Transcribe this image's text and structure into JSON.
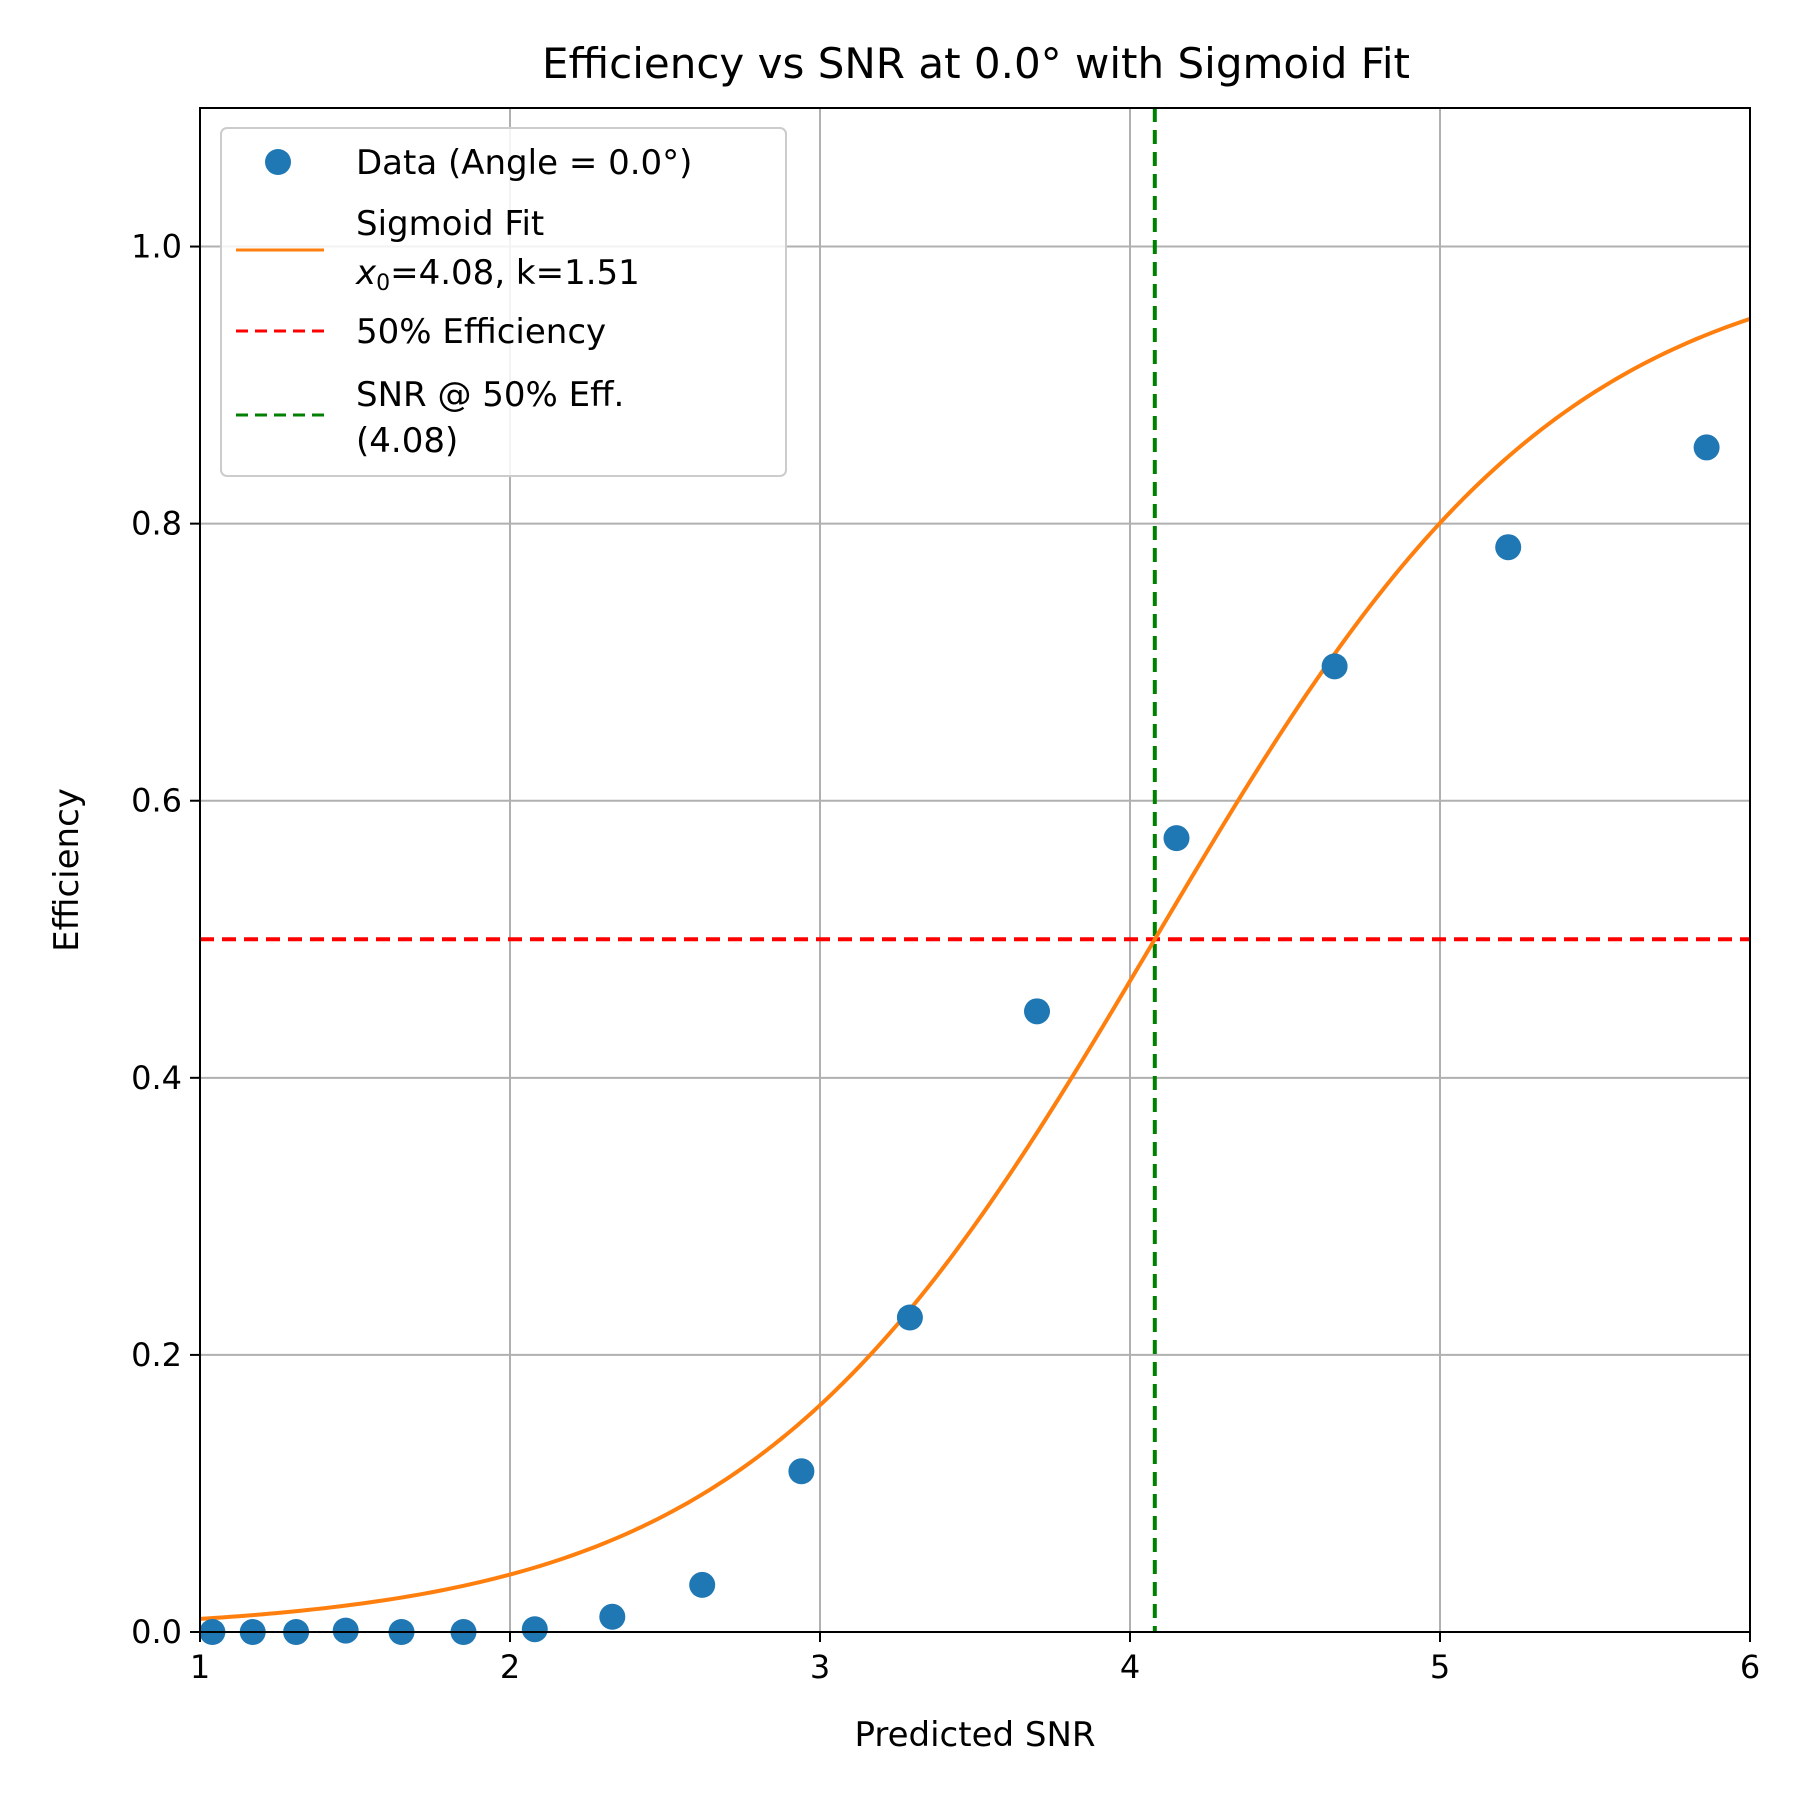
{
  "chart_data": {
    "type": "scatter",
    "title": "Efficiency vs SNR at 0.0° with Sigmoid Fit",
    "xlabel": "Predicted SNR",
    "ylabel": "Efficiency",
    "xlim": [
      1,
      6
    ],
    "ylim": [
      0,
      1.1
    ],
    "xticks": [
      1,
      2,
      3,
      4,
      5,
      6
    ],
    "xtick_labels": [
      "1",
      "2",
      "3",
      "4",
      "5",
      "6"
    ],
    "yticks": [
      0.0,
      0.2,
      0.4,
      0.6,
      0.8,
      1.0
    ],
    "ytick_labels": [
      "0.0",
      "0.2",
      "0.4",
      "0.6",
      "0.8",
      "1.0"
    ],
    "grid": true,
    "legend_position": "top-left",
    "series": [
      {
        "name": "Data (Angle = 0.0°)",
        "kind": "scatter",
        "color": "#1f77b4",
        "x": [
          1.04,
          1.17,
          1.31,
          1.47,
          1.65,
          1.85,
          2.08,
          2.33,
          2.62,
          2.94,
          3.29,
          3.7,
          4.15,
          4.66,
          5.22,
          5.86
        ],
        "y": [
          0.0,
          0.0,
          0.0,
          0.001,
          0.0,
          0.0,
          0.002,
          0.011,
          0.034,
          0.116,
          0.227,
          0.448,
          0.573,
          0.697,
          0.783,
          0.855
        ]
      },
      {
        "name": "Sigmoid Fit",
        "name_line2_prefix": "x",
        "name_line2_sub": "0",
        "name_line2_rest": "=4.08, k=1.51",
        "kind": "sigmoid",
        "color": "#ff7f0e",
        "x0": 4.08,
        "k": 1.51
      },
      {
        "name": "50% Efficiency",
        "kind": "hline",
        "color": "#ff0000",
        "y": 0.5
      },
      {
        "name": "SNR @ 50% Eff.",
        "name_line2": "(4.08)",
        "kind": "vline",
        "color": "#008000",
        "x": 4.08
      }
    ]
  }
}
